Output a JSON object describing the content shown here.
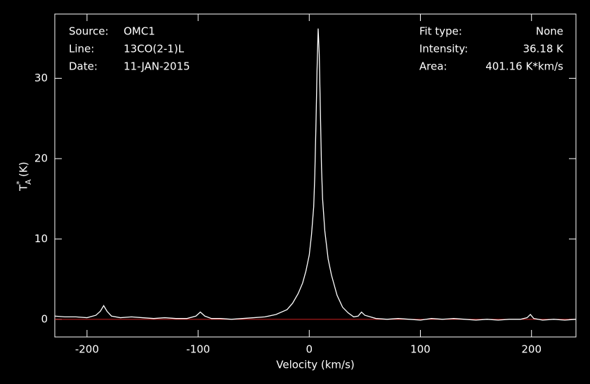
{
  "chart_data": {
    "type": "line",
    "xlabel": "Velocity (km/s)",
    "ylabel": {
      "main": "T",
      "sup": "*",
      "sub": "A",
      "unit": "(K)"
    },
    "info_left": [
      [
        "Source:",
        "OMC1"
      ],
      [
        "Line:",
        "13CO(2-1)L"
      ],
      [
        "Date:",
        "11-JAN-2015"
      ]
    ],
    "info_right": [
      [
        "Fit type:",
        "None"
      ],
      [
        "Intensity:",
        "36.18 K"
      ],
      [
        "Area:",
        "401.16 K*km/s"
      ]
    ],
    "x": [
      -229,
      -220,
      -210,
      -200,
      -192,
      -188,
      -185,
      -182,
      -178,
      -170,
      -160,
      -150,
      -140,
      -130,
      -120,
      -110,
      -102,
      -98,
      -94,
      -88,
      -80,
      -70,
      -60,
      -50,
      -40,
      -30,
      -20,
      -15,
      -10,
      -6,
      -3,
      0,
      2,
      4,
      5,
      6,
      7,
      8,
      9,
      10,
      11,
      12,
      14,
      17,
      20,
      25,
      30,
      35,
      40,
      44,
      47,
      50,
      55,
      60,
      70,
      80,
      90,
      100,
      110,
      120,
      130,
      140,
      150,
      160,
      170,
      180,
      190,
      196,
      199,
      202,
      210,
      220,
      230,
      240
    ],
    "series": [
      {
        "name": "spectrum",
        "color": "#ffffff",
        "values": [
          0.4,
          0.3,
          0.3,
          0.2,
          0.5,
          1.0,
          1.7,
          1.0,
          0.4,
          0.2,
          0.3,
          0.2,
          0.1,
          0.2,
          0.1,
          0.1,
          0.4,
          0.9,
          0.4,
          0.1,
          0.1,
          0,
          0.1,
          0.2,
          0.3,
          0.6,
          1.2,
          2.0,
          3.2,
          4.5,
          6.0,
          8.0,
          10.5,
          14,
          18,
          24,
          31,
          36.2,
          33,
          26,
          19,
          15,
          11,
          7.5,
          5.5,
          3.0,
          1.5,
          0.8,
          0.3,
          0.4,
          0.9,
          0.5,
          0.3,
          0.1,
          0,
          0.1,
          0,
          -0.1,
          0.1,
          0,
          0.1,
          0,
          -0.1,
          0,
          -0.1,
          0,
          0,
          0.2,
          0.6,
          0.1,
          -0.1,
          0,
          -0.1,
          0
        ]
      }
    ],
    "baseline": {
      "value": 0,
      "color": "#cc2020"
    },
    "xlim": [
      -229,
      240
    ],
    "ylim": [
      -2.2,
      38
    ],
    "xticks": [
      -200,
      -100,
      0,
      100,
      200
    ],
    "yticks": [
      0,
      10,
      20,
      30
    ]
  }
}
